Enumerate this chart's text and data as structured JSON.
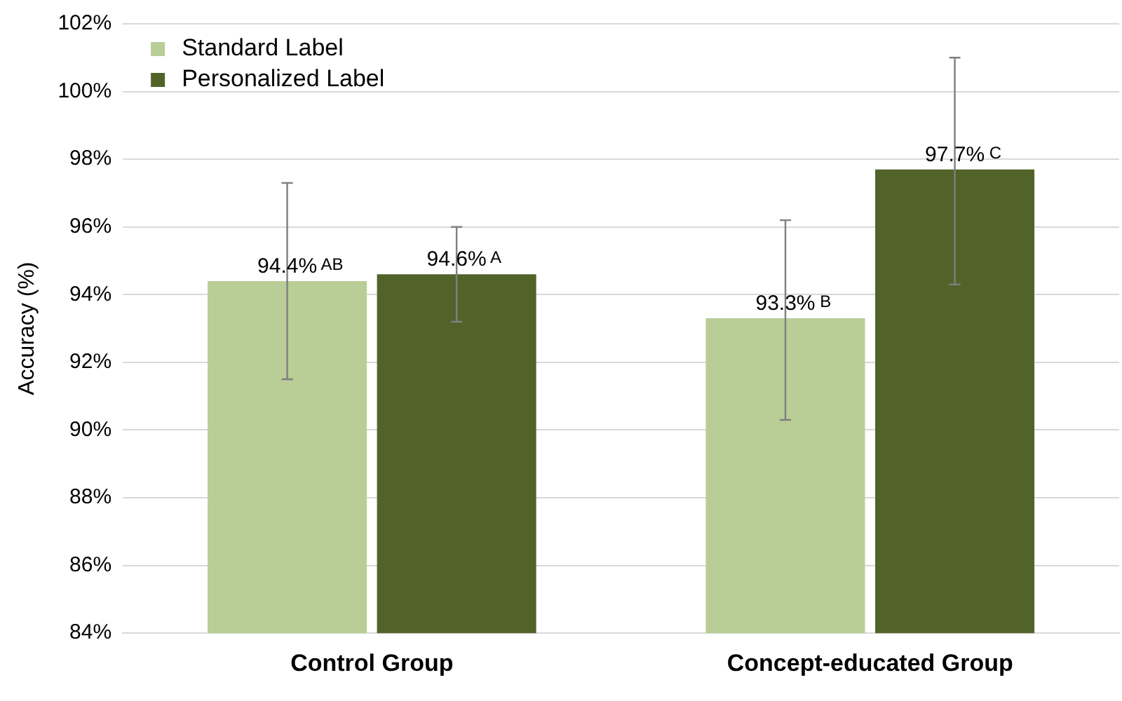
{
  "chart_data": {
    "type": "bar",
    "ylabel": "Accuracy (%)",
    "categories": [
      "Control Group",
      "Concept-educated Group"
    ],
    "series": [
      {
        "name": "Standard Label",
        "color": "#b9cd97",
        "values": [
          94.4,
          93.3
        ],
        "errors": [
          [
            91.5,
            97.3
          ],
          [
            90.3,
            96.2
          ]
        ],
        "value_labels": [
          "94.4% AB",
          "93.3% B"
        ]
      },
      {
        "name": "Personalized Label",
        "color": "#52632a",
        "values": [
          94.6,
          97.7
        ],
        "errors": [
          [
            93.2,
            96.0
          ],
          [
            94.3,
            101.0
          ]
        ],
        "value_labels": [
          "94.6% A",
          "97.7% C"
        ]
      }
    ],
    "ylim": [
      84,
      102
    ],
    "yticks": [
      {
        "value": 84,
        "label": "84%"
      },
      {
        "value": 86,
        "label": "86%"
      },
      {
        "value": 88,
        "label": "88%"
      },
      {
        "value": 90,
        "label": "90%"
      },
      {
        "value": 92,
        "label": "92%"
      },
      {
        "value": 94,
        "label": "94%"
      },
      {
        "value": 96,
        "label": "96%"
      },
      {
        "value": 98,
        "label": "98%"
      },
      {
        "value": 100,
        "label": "100%"
      },
      {
        "value": 102,
        "label": "102%"
      }
    ],
    "grid": "y",
    "legend": "top left"
  }
}
